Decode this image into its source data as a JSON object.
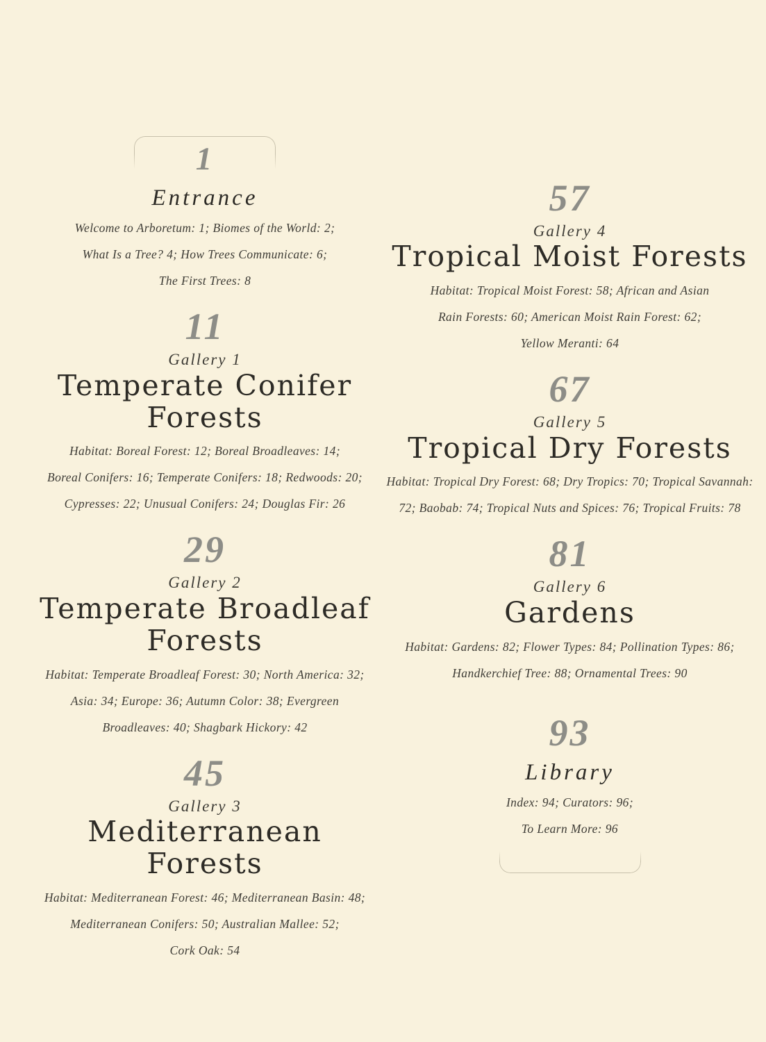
{
  "page": {
    "background_color": "#f9f2dd",
    "number_color": "#8d8d87",
    "title_color": "#2d2b26",
    "body_color": "#3e3c36",
    "frame_color": "#c7c0ab"
  },
  "sections": [
    {
      "number": "1",
      "title": "Entrance",
      "toc_lines": [
        "Welcome to Arboretum: 1; Biomes of the World: 2;",
        "What Is a Tree? 4; How Trees Communicate: 6;",
        "The First Trees: 8"
      ]
    },
    {
      "number": "11",
      "gallery_label": "Gallery 1",
      "title_lines": [
        "Temperate Conifer",
        "Forests"
      ],
      "toc_lines": [
        "Habitat: Boreal Forest: 12; Boreal Broadleaves: 14;",
        "Boreal Conifers: 16; Temperate Conifers: 18; Redwoods: 20;",
        "Cypresses: 22; Unusual Conifers: 24; Douglas Fir: 26"
      ]
    },
    {
      "number": "29",
      "gallery_label": "Gallery 2",
      "title_lines": [
        "Temperate Broadleaf",
        "Forests"
      ],
      "toc_lines": [
        "Habitat: Temperate Broadleaf Forest: 30; North America: 32;",
        "Asia: 34; Europe: 36; Autumn Color: 38; Evergreen",
        "Broadleaves: 40; Shagbark Hickory: 42"
      ]
    },
    {
      "number": "45",
      "gallery_label": "Gallery 3",
      "title_lines": [
        "Mediterranean",
        "Forests"
      ],
      "toc_lines": [
        "Habitat: Mediterranean Forest: 46; Mediterranean Basin: 48;",
        "Mediterranean Conifers: 50; Australian Mallee: 52;",
        "Cork Oak: 54"
      ]
    },
    {
      "number": "57",
      "gallery_label": "Gallery 4",
      "title_lines": [
        "Tropical Moist Forests"
      ],
      "toc_lines": [
        "Habitat: Tropical Moist Forest: 58; African and Asian",
        "Rain Forests: 60; American Moist Rain Forest: 62;",
        "Yellow Meranti: 64"
      ]
    },
    {
      "number": "67",
      "gallery_label": "Gallery 5",
      "title_lines": [
        "Tropical Dry Forests"
      ],
      "toc_lines": [
        "Habitat: Tropical Dry Forest: 68; Dry Tropics: 70; Tropical Savannah:",
        "72; Baobab: 74; Tropical Nuts and Spices: 76; Tropical Fruits: 78"
      ]
    },
    {
      "number": "81",
      "gallery_label": "Gallery 6",
      "title_lines": [
        "Gardens"
      ],
      "toc_lines": [
        "Habitat: Gardens: 82; Flower Types: 84; Pollination Types: 86;",
        "Handkerchief Tree: 88; Ornamental Trees: 90"
      ]
    },
    {
      "number": "93",
      "title": "Library",
      "toc_lines": [
        "Index: 94; Curators: 96;",
        "To Learn More: 96"
      ]
    }
  ]
}
